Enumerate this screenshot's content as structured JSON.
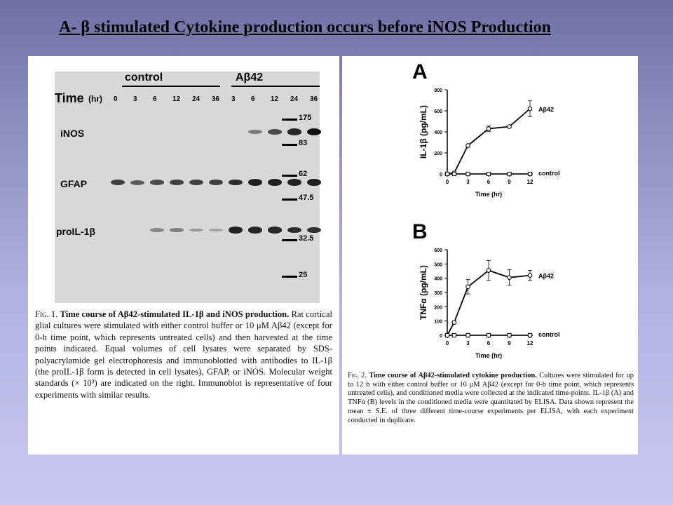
{
  "slide": {
    "title": "A- β stimulated Cytokine production occurs before iNOS Production"
  },
  "fig1": {
    "group_labels": [
      "control",
      "Aβ42"
    ],
    "time_label": "Time",
    "time_unit": "(hr)",
    "lanes": [
      "0",
      "3",
      "6",
      "12",
      "24",
      "36",
      "3",
      "6",
      "12",
      "24",
      "36"
    ],
    "rows": [
      "iNOS",
      "GFAP",
      "proIL-1β"
    ],
    "mw_markers": [
      "175",
      "83",
      "62",
      "47.5",
      "32.5",
      "25"
    ],
    "band_intensity": {
      "iNOS": [
        0,
        0,
        0,
        0,
        0,
        0,
        0,
        0.3,
        0.6,
        0.85,
        1.0
      ],
      "GFAP": [
        0.7,
        0.5,
        0.6,
        0.7,
        0.7,
        0.7,
        0.8,
        0.9,
        0.9,
        0.9,
        0.9
      ],
      "proIL-1β": [
        0,
        0,
        0.2,
        0.25,
        0.1,
        0.05,
        0.9,
        0.85,
        0.85,
        0.8,
        0.8
      ]
    },
    "caption_label": "Fig. 1.",
    "caption_title": "Time course of Aβ42-stimulated IL-1β and iNOS production.",
    "caption_body": "Rat cortical glial cultures were stimulated with either control buffer or 10 μM Aβ42 (except for 0-h time point, which represents untreated cells) and then harvested at the time points indicated. Equal volumes of cell lysates were separated by SDS-polyacrylamide gel electrophoresis and immunoblotted with antibodies to IL-1β (the proIL-1β form is detected in cell lysates), GFAP, or iNOS. Molecular weight standards (× 10³) are indicated on the right. Immunoblot is representative of four experiments with similar results."
  },
  "fig2": {
    "caption_label": "Fig. 2.",
    "caption_title": "Time course of Aβ42-stimulated cytokine production.",
    "caption_body": "Cultures were stimulated for up to 12 h with either control buffer or 10 μM Aβ42 (except for 0-h time point, which represents untreated cells), and conditioned media were collected at the indicated time-points. IL-1β (A) and TNFα (B) levels in the conditioned media were quantitated by ELISA. Data shown represent the mean ± S.E. of three different time-course experiments per ELISA, with each experiment conducted in duplicate."
  },
  "chart_data": [
    {
      "type": "line",
      "panel_label": "A",
      "ylabel": "IL-1β (pg/mL)",
      "xlabel": "Time (hr)",
      "ylim": [
        0,
        800
      ],
      "xlim": [
        0,
        12
      ],
      "xticks": [
        0,
        3,
        6,
        9,
        12
      ],
      "yticks": [
        0,
        200,
        400,
        600,
        800
      ],
      "series": [
        {
          "name": "Aβ42",
          "x": [
            0,
            1,
            3,
            6,
            9,
            12
          ],
          "y": [
            0,
            10,
            270,
            430,
            450,
            620
          ],
          "err": [
            0,
            5,
            15,
            25,
            10,
            75
          ],
          "marker": "circle"
        },
        {
          "name": "control",
          "x": [
            0,
            1,
            3,
            6,
            9,
            12
          ],
          "y": [
            0,
            0,
            0,
            0,
            0,
            0
          ],
          "err": [
            0,
            0,
            0,
            0,
            0,
            0
          ],
          "marker": "square"
        }
      ]
    },
    {
      "type": "line",
      "panel_label": "B",
      "ylabel": "TNFα (pg/mL)",
      "xlabel": "Time (hr)",
      "ylim": [
        0,
        600
      ],
      "xlim": [
        0,
        12
      ],
      "xticks": [
        0,
        3,
        6,
        9,
        12
      ],
      "yticks": [
        0,
        100,
        200,
        300,
        400,
        500,
        600
      ],
      "series": [
        {
          "name": "Aβ42",
          "x": [
            0,
            1,
            3,
            6,
            9,
            12
          ],
          "y": [
            0,
            90,
            340,
            455,
            405,
            420
          ],
          "err": [
            0,
            10,
            50,
            70,
            55,
            35
          ],
          "marker": "circle"
        },
        {
          "name": "control",
          "x": [
            0,
            1,
            3,
            6,
            9,
            12
          ],
          "y": [
            0,
            0,
            0,
            0,
            0,
            0
          ],
          "err": [
            0,
            0,
            0,
            0,
            0,
            0
          ],
          "marker": "square"
        }
      ]
    }
  ]
}
